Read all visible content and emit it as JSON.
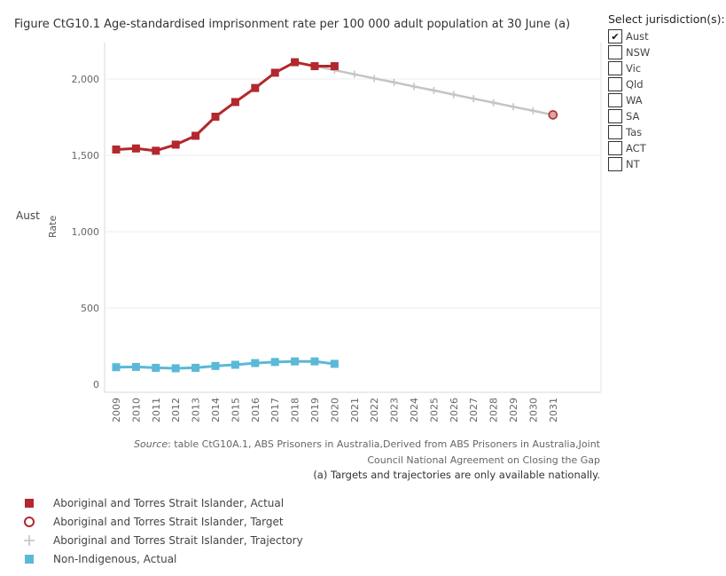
{
  "title": "Figure CtG10.1 Age-standardised imprisonment rate per 100 000 adult population at 30 June (a)",
  "row_label": "Aust",
  "source_prefix": "Source",
  "source_text": ": table CtG10A.1, ABS Prisoners in Australia,Derived from ABS Prisoners in Australia,Joint Council National Agreement on Closing the Gap",
  "note": "(a) Targets and trajectories are only available nationally.",
  "filter": {
    "title": "Select jurisdiction(s):",
    "options": [
      {
        "label": "Aust",
        "checked": true
      },
      {
        "label": "NSW",
        "checked": false
      },
      {
        "label": "Vic",
        "checked": false
      },
      {
        "label": "Qld",
        "checked": false
      },
      {
        "label": "WA",
        "checked": false
      },
      {
        "label": "SA",
        "checked": false
      },
      {
        "label": "Tas",
        "checked": false
      },
      {
        "label": "ACT",
        "checked": false
      },
      {
        "label": "NT",
        "checked": false
      }
    ]
  },
  "colors": {
    "aboriginal": "#b2282d",
    "trajectory": "#c4c4c4",
    "non_indigenous": "#5ab9d6",
    "target_fill": "#d9a5a5",
    "grid": "#ececec"
  },
  "chart_data": {
    "type": "line",
    "ylabel": "Rate",
    "xlabel": "",
    "ylim": [
      0,
      2300
    ],
    "yticks": [
      0,
      500,
      1000,
      1500,
      2000
    ],
    "ytick_labels": [
      "0",
      "500",
      "1,000",
      "1,500",
      "2,000"
    ],
    "x": [
      2009,
      2010,
      2011,
      2012,
      2013,
      2014,
      2015,
      2016,
      2017,
      2018,
      2019,
      2020,
      2021,
      2022,
      2023,
      2024,
      2025,
      2026,
      2027,
      2028,
      2029,
      2030,
      2031
    ],
    "x_labels": [
      "2009",
      "2010",
      "2011",
      "2012",
      "2013",
      "2014",
      "2015",
      "2016",
      "2017",
      "2018",
      "2019",
      "2020",
      "2021",
      "2022",
      "2023",
      "2024",
      "2025",
      "2026",
      "2027",
      "2028",
      "2029",
      "2030",
      "2031"
    ],
    "series": [
      {
        "name": "Aboriginal and Torres Strait Islander, Actual",
        "marker": "square",
        "x": [
          2009,
          2010,
          2011,
          2012,
          2013,
          2014,
          2015,
          2016,
          2017,
          2018,
          2019,
          2020
        ],
        "values": [
          1538,
          1545,
          1530,
          1570,
          1628,
          1753,
          1849,
          1941,
          2041,
          2110,
          2084,
          2084
        ]
      },
      {
        "name": "Aboriginal and Torres Strait Islander, Target",
        "marker": "circle",
        "x": [
          2031
        ],
        "values": [
          1765
        ]
      },
      {
        "name": "Aboriginal and Torres Strait Islander, Trajectory",
        "marker": "plus",
        "x": [
          2019,
          2020,
          2021,
          2022,
          2023,
          2024,
          2025,
          2026,
          2027,
          2028,
          2029,
          2030,
          2031
        ],
        "values": [
          2084,
          2058,
          2031,
          2004,
          1978,
          1951,
          1925,
          1898,
          1871,
          1845,
          1818,
          1792,
          1765
        ]
      },
      {
        "name": "Non-Indigenous, Actual",
        "marker": "square",
        "x": [
          2009,
          2010,
          2011,
          2012,
          2013,
          2014,
          2015,
          2016,
          2017,
          2018,
          2019,
          2020
        ],
        "values": [
          112,
          114,
          108,
          105,
          108,
          120,
          128,
          139,
          146,
          150,
          150,
          134
        ]
      }
    ]
  }
}
